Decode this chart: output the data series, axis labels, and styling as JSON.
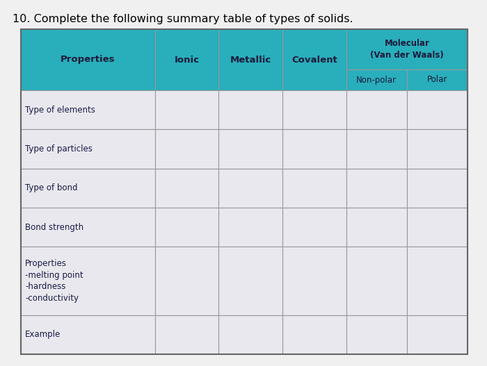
{
  "title": "10. Complete the following summary table of types of solids.",
  "title_fontsize": 11.5,
  "title_color": "#000000",
  "header_bg_color": "#29AEBB",
  "header_text_color": "#1a1a3a",
  "cell_bg_color": "#E8E8EE",
  "cell_col0_bg": "#E8E8EE",
  "border_color": "#999999",
  "row_label_color": "#1a1a4a",
  "col_headers": [
    "Properties",
    "Ionic",
    "Metallic",
    "Covalent"
  ],
  "mol_header": "Molecular\n(Van der Waals)",
  "subheader_a": "Non-polar",
  "subheader_b": "Polar",
  "row_labels": [
    "Type of elements",
    "Type of particles",
    "Type of bond",
    "Bond strength",
    "Properties\n-melting point\n-hardness\n-conductivity",
    "Example"
  ],
  "row_h_props": [
    1.0,
    1.0,
    1.0,
    1.0,
    1.75,
    1.0
  ],
  "col_w_props": [
    2.1,
    1.0,
    1.0,
    1.0,
    0.95,
    0.95
  ],
  "fig_width": 7.0,
  "fig_height": 5.27,
  "dpi": 100
}
